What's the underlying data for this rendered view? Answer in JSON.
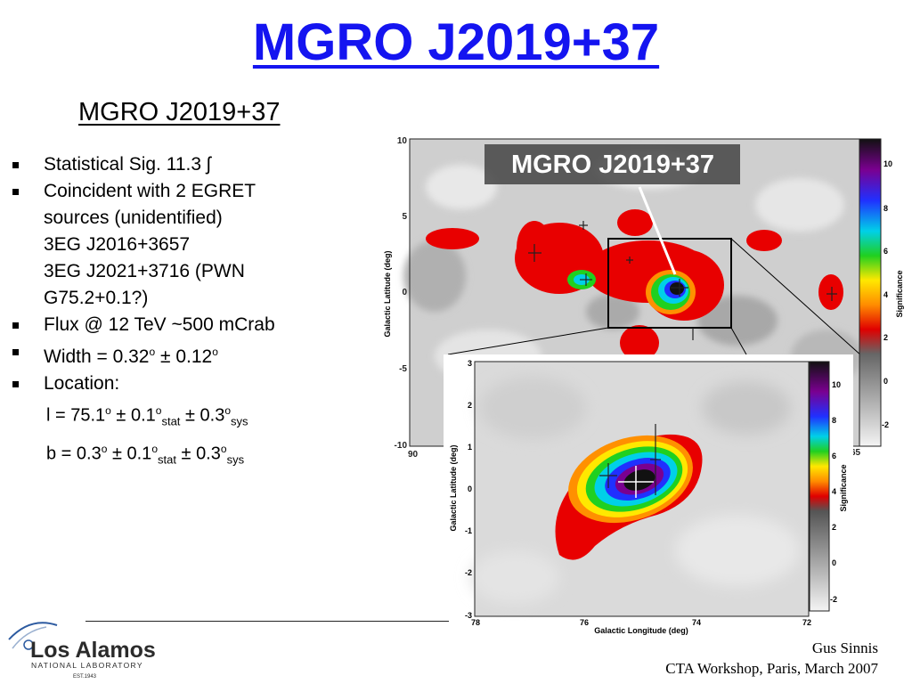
{
  "title": "MGRO J2019+37",
  "subtitle": "MGRO J2019+37",
  "bullets": {
    "sig": "Statistical Sig. 11.3",
    "coincident_1": "Coincident with 2 EGRET",
    "coincident_2": "sources (unidentified)",
    "src1": "3EG J2016+3657",
    "src2": "3EG J2021+3716 (PWN",
    "src2b": "G75.2+0.1?)",
    "flux": "Flux @ 12 TeV ~500 mCrab",
    "width_prefix": "Width = 0.32",
    "width_unc": " ± 0.12",
    "location": "Location:",
    "l_prefix": "l = 75.1",
    "b_prefix": "b =  0.3",
    "pm": " ± ",
    "pm_val": "0.1",
    "pm_val2": "0.3",
    "deg": "o",
    "stat": "stat",
    "sys": "sys"
  },
  "footer": {
    "author": "Gus Sinnis",
    "event": "CTA Workshop, Paris, March 2007",
    "logo_name": "Los Alamos",
    "logo_sub": "NATIONAL LABORATORY",
    "logo_est": "EST.1943"
  },
  "colors": {
    "title": "#1414f0"
  },
  "map_large": {
    "label": "MGRO J2019+37",
    "ylabel": "Galactic Latitude (deg)",
    "colorbar_label": "Significance",
    "x_ticks": [
      "90",
      "65"
    ],
    "y_ticks": [
      "10",
      "5",
      "0",
      "-5",
      "-10"
    ],
    "cb_ticks": [
      "10",
      "8",
      "6",
      "4",
      "2",
      "0",
      "-2"
    ]
  },
  "map_zoom": {
    "xlabel": "Galactic Longitude (deg)",
    "ylabel": "Galactic Latitude (deg)",
    "colorbar_label": "Significance",
    "x_ticks": [
      "78",
      "76",
      "74",
      "72"
    ],
    "y_ticks": [
      "3",
      "2",
      "1",
      "0",
      "-1",
      "-2",
      "-3"
    ],
    "cb_ticks": [
      "10",
      "8",
      "6",
      "4",
      "2",
      "0",
      "-2"
    ]
  }
}
